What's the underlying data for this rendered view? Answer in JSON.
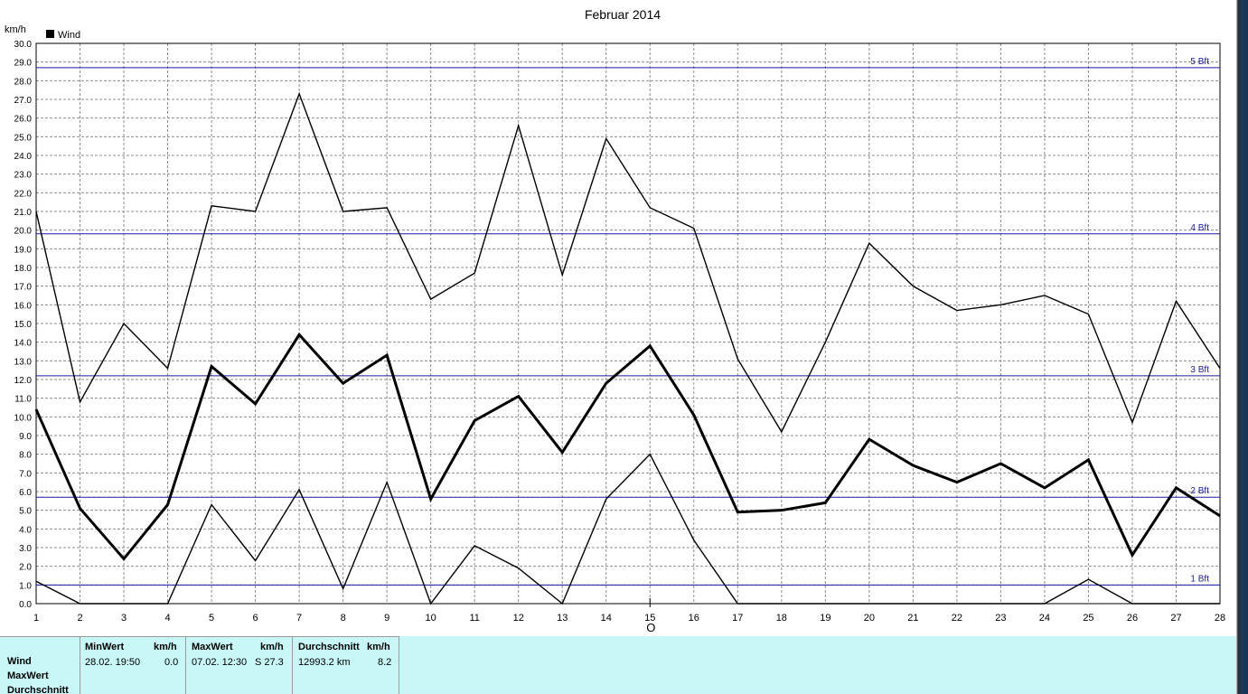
{
  "chart_data": {
    "type": "line",
    "title": "Februar 2014",
    "ylabel": "km/h",
    "xlabel": "",
    "ylim": [
      0,
      30
    ],
    "xlim": [
      1,
      28
    ],
    "x": [
      1,
      2,
      3,
      4,
      5,
      6,
      7,
      8,
      9,
      10,
      11,
      12,
      13,
      14,
      15,
      16,
      17,
      18,
      19,
      20,
      21,
      22,
      23,
      24,
      25,
      26,
      27,
      28
    ],
    "y_ticks": [
      "0.0",
      "1.0",
      "2.0",
      "3.0",
      "4.0",
      "5.0",
      "6.0",
      "7.0",
      "8.0",
      "9.0",
      "10.0",
      "11.0",
      "12.0",
      "13.0",
      "14.0",
      "15.0",
      "16.0",
      "17.0",
      "18.0",
      "19.0",
      "20.0",
      "21.0",
      "22.0",
      "23.0",
      "24.0",
      "25.0",
      "26.0",
      "27.0",
      "28.0",
      "29.0",
      "30.0"
    ],
    "x_ticks": [
      "1",
      "2",
      "3",
      "4",
      "5",
      "6",
      "7",
      "8",
      "9",
      "10",
      "11",
      "12",
      "13",
      "14",
      "15",
      "16",
      "17",
      "18",
      "19",
      "20",
      "21",
      "22",
      "23",
      "24",
      "25",
      "26",
      "27",
      "28"
    ],
    "legend": {
      "label": "Wind",
      "placement": "top-left",
      "color": "#000000"
    },
    "grid": true,
    "series": [
      {
        "role": "max",
        "color": "#000000",
        "values": [
          21.0,
          10.8,
          15.0,
          12.6,
          21.3,
          21.0,
          27.3,
          21.0,
          21.2,
          16.3,
          17.7,
          25.6,
          17.6,
          24.9,
          21.2,
          20.1,
          13.1,
          9.2,
          14.0,
          19.3,
          17.0,
          15.7,
          16.0,
          16.5,
          15.5,
          9.7,
          16.2,
          12.6
        ]
      },
      {
        "role": "avg",
        "color": "#000000",
        "values": [
          10.4,
          5.1,
          2.4,
          5.3,
          12.7,
          10.7,
          14.4,
          11.8,
          13.3,
          5.6,
          9.8,
          11.1,
          8.1,
          11.8,
          13.8,
          10.1,
          4.9,
          5.0,
          5.4,
          8.8,
          7.4,
          6.5,
          7.5,
          6.2,
          7.7,
          2.6,
          6.2,
          4.7
        ]
      },
      {
        "role": "min",
        "color": "#000000",
        "values": [
          1.2,
          0.0,
          0.0,
          0.0,
          5.3,
          2.3,
          6.1,
          0.8,
          6.5,
          0.0,
          3.1,
          1.9,
          0.0,
          5.6,
          8.0,
          3.4,
          0.0,
          0.0,
          0.0,
          0.0,
          0.0,
          0.0,
          0.0,
          0.0,
          1.3,
          0.0,
          0.0,
          0.0
        ]
      }
    ],
    "reference_lines": [
      {
        "label": "1 Bft",
        "value": 1.0,
        "color": "#1a1aa0"
      },
      {
        "label": "2 Bft",
        "value": 5.7,
        "color": "#1a1aa0"
      },
      {
        "label": "3 Bft",
        "value": 12.2,
        "color": "#1a1aa0"
      },
      {
        "label": "4 Bft",
        "value": 19.8,
        "color": "#1a1aa0"
      },
      {
        "label": "5 Bft",
        "value": 28.7,
        "color": "#1a1aa0"
      }
    ],
    "marker": {
      "x": 15,
      "label": "O"
    }
  },
  "stats": {
    "row_labels": [
      "Wind",
      "MaxWert",
      "Durchschnitt"
    ],
    "min_header": "MinWert",
    "min_unit": "km/h",
    "min_date": "28.02.  19:50",
    "min_value": "0.0",
    "max_header": "MaxWert",
    "max_unit": "km/h",
    "max_date": "07.02.  12:30",
    "max_value": "S 27.3",
    "avg_header": "Durchschnitt",
    "avg_unit": "km/h",
    "avg_distance": "12993.2 km",
    "avg_value": "8.2"
  },
  "colors": {
    "panel_bg": "#c8f7f7",
    "ref_line": "#1a1aa0"
  }
}
